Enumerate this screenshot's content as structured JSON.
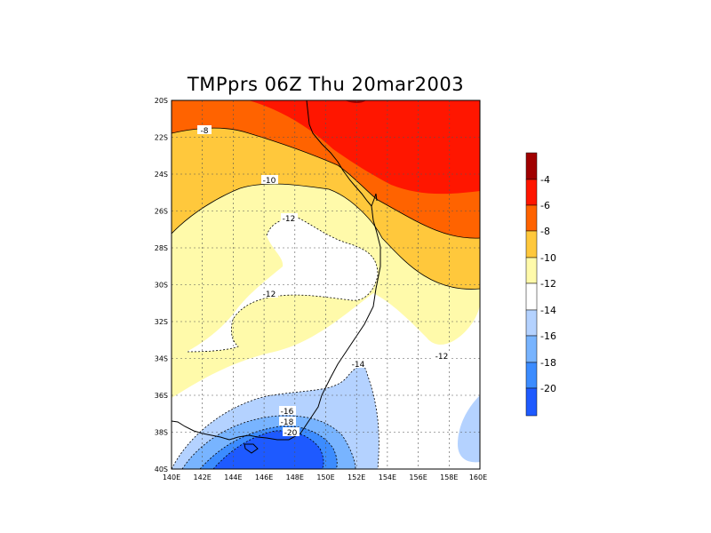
{
  "title": "TMPprs 06Z Thu 20mar2003",
  "map": {
    "lat_labels": [
      "20S",
      "22S",
      "24S",
      "26S",
      "28S",
      "30S",
      "32S",
      "34S",
      "36S",
      "38S",
      "40S"
    ],
    "lon_labels": [
      "140E",
      "142E",
      "144E",
      "146E",
      "148E",
      "150E",
      "152E",
      "154E",
      "156E",
      "158E",
      "160E"
    ],
    "lat_range": [
      -40,
      -20
    ],
    "lon_range": [
      140,
      160
    ],
    "gridlines": "dotted",
    "contour_labels": [
      "-8",
      "-10",
      "-12",
      "-12",
      "-12",
      "-14",
      "-16",
      "-18",
      "-20"
    ]
  },
  "colorbar": {
    "labels": [
      "-4",
      "-6",
      "-8",
      "-10",
      "-12",
      "-14",
      "-16",
      "-18",
      "-20"
    ],
    "colors": [
      "#a00000",
      "#ff1600",
      "#ff6300",
      "#ffc83c",
      "#fffaaa",
      "#ffffff",
      "#b4d2ff",
      "#78b4ff",
      "#3c8cff",
      "#1e5aff"
    ]
  },
  "colors": {
    "level_-4": "#a00000",
    "level_-6": "#ff1600",
    "level_-8": "#ff6300",
    "level_-10": "#ffc83c",
    "level_-12": "#fffaaa",
    "level_-14": "#ffffff",
    "level_-16": "#b4d2ff",
    "level_-18": "#78b4ff",
    "level_-20": "#3c8cff",
    "level_lt_-20": "#1e5aff"
  }
}
